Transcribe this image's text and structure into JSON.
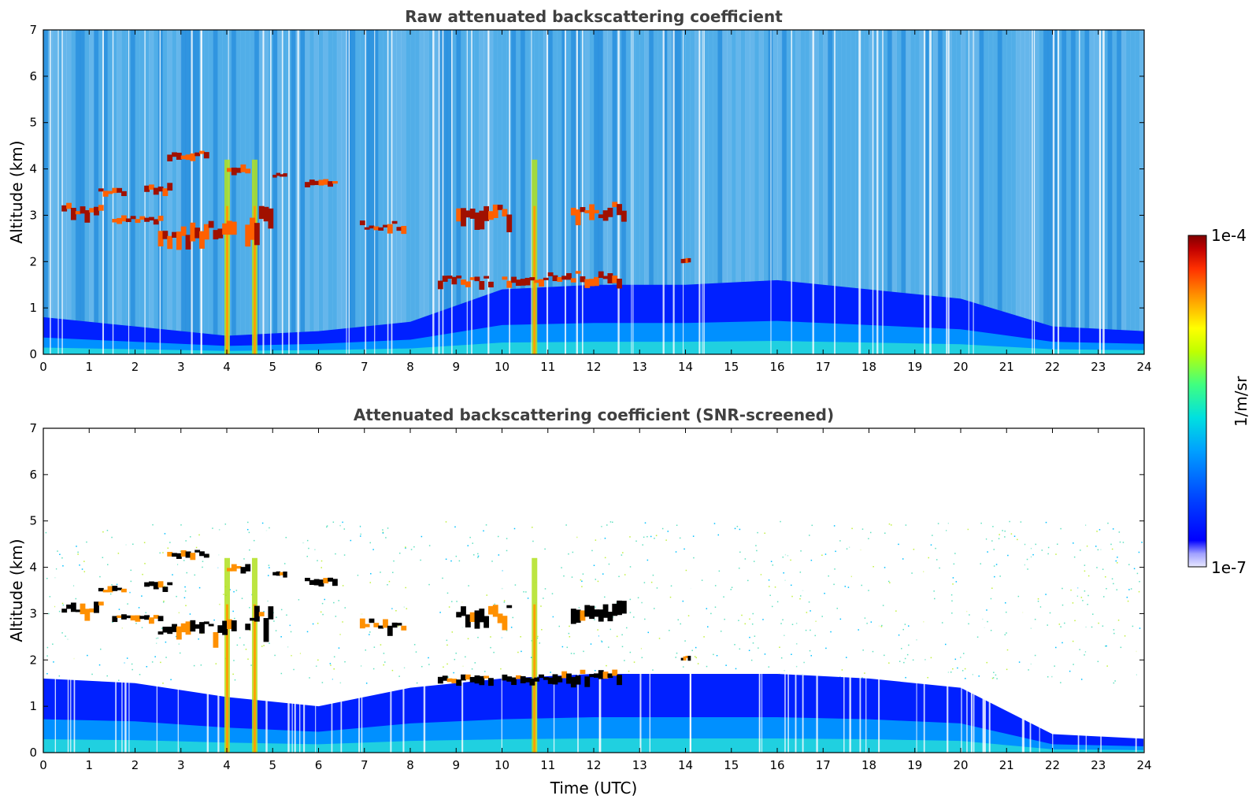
{
  "colors": {
    "background": "#ffffff",
    "title_color": "#404040",
    "colormap": [
      "#e8e8ff",
      "#b0b0ff",
      "#5050ff",
      "#0000ff",
      "#0050ff",
      "#00a0ff",
      "#00e0e0",
      "#40ff80",
      "#c0ff00",
      "#ffff00",
      "#ffa000",
      "#ff4000",
      "#d00000",
      "#800000"
    ],
    "cloud_screened": "#000000"
  },
  "colorbar": {
    "label": "1/m/sr",
    "max_label": "1e-4",
    "min_label": "1e-7",
    "scale": "log",
    "range": [
      1e-07,
      0.0001
    ]
  },
  "chart_data": [
    {
      "type": "heatmap",
      "title": "Raw attenuated backscattering coefficient",
      "xlabel": "",
      "ylabel": "Altitude (km)",
      "xlim": [
        0,
        24
      ],
      "ylim": [
        0,
        7
      ],
      "xticks": [
        0,
        1,
        2,
        3,
        4,
        5,
        6,
        7,
        8,
        9,
        10,
        11,
        12,
        13,
        14,
        15,
        16,
        17,
        18,
        19,
        20,
        21,
        22,
        23,
        24
      ],
      "yticks": [
        0,
        1,
        2,
        3,
        4,
        5,
        6,
        7
      ],
      "grid": false,
      "features": {
        "boundary_layer_top_km": [
          [
            0,
            0.8
          ],
          [
            2,
            0.6
          ],
          [
            4,
            0.4
          ],
          [
            6,
            0.5
          ],
          [
            8,
            0.7
          ],
          [
            10,
            1.4
          ],
          [
            12,
            1.5
          ],
          [
            14,
            1.5
          ],
          [
            16,
            1.6
          ],
          [
            18,
            1.4
          ],
          [
            20,
            1.2
          ],
          [
            22,
            0.6
          ],
          [
            24,
            0.5
          ]
        ],
        "cloud_layers": [
          {
            "x": [
              0.4,
              1.3
            ],
            "y": [
              2.9,
              3.3
            ]
          },
          {
            "x": [
              1.2,
              1.8
            ],
            "y": [
              3.45,
              3.6
            ]
          },
          {
            "x": [
              1.5,
              2.6
            ],
            "y": [
              2.85,
              3.0
            ]
          },
          {
            "x": [
              2.2,
              2.8
            ],
            "y": [
              3.5,
              3.7
            ]
          },
          {
            "x": [
              2.5,
              4.2
            ],
            "y": [
              2.3,
              2.9
            ]
          },
          {
            "x": [
              2.7,
              3.6
            ],
            "y": [
              4.2,
              4.4
            ]
          },
          {
            "x": [
              4.0,
              4.5
            ],
            "y": [
              3.9,
              4.1
            ]
          },
          {
            "x": [
              4.4,
              5.0
            ],
            "y": [
              2.4,
              3.2
            ]
          },
          {
            "x": [
              5.0,
              5.3
            ],
            "y": [
              3.8,
              3.95
            ]
          },
          {
            "x": [
              5.7,
              6.4
            ],
            "y": [
              3.6,
              3.8
            ]
          },
          {
            "x": [
              6.9,
              7.9
            ],
            "y": [
              2.6,
              2.9
            ]
          },
          {
            "x": [
              8.6,
              9.8
            ],
            "y": [
              1.45,
              1.7
            ]
          },
          {
            "x": [
              9.0,
              10.2
            ],
            "y": [
              2.7,
              3.3
            ]
          },
          {
            "x": [
              10.0,
              11.0
            ],
            "y": [
              1.5,
              1.7
            ]
          },
          {
            "x": [
              11.0,
              12.6
            ],
            "y": [
              1.5,
              1.8
            ]
          },
          {
            "x": [
              11.5,
              12.7
            ],
            "y": [
              2.8,
              3.3
            ]
          },
          {
            "x": [
              13.9,
              14.1
            ],
            "y": [
              2.0,
              2.1
            ]
          }
        ],
        "precipitation_columns_hours": [
          4.0,
          4.6,
          10.7
        ]
      }
    },
    {
      "type": "heatmap",
      "title": "Attenuated backscattering coefficient (SNR-screened)",
      "xlabel": "Time (UTC)",
      "ylabel": "Altitude (km)",
      "xlim": [
        0,
        24
      ],
      "ylim": [
        0,
        7
      ],
      "xticks": [
        0,
        1,
        2,
        3,
        4,
        5,
        6,
        7,
        8,
        9,
        10,
        11,
        12,
        13,
        14,
        15,
        16,
        17,
        18,
        19,
        20,
        21,
        22,
        23,
        24
      ],
      "yticks": [
        0,
        1,
        2,
        3,
        4,
        5,
        6,
        7
      ],
      "grid": false,
      "features": {
        "boundary_layer_top_km": [
          [
            0,
            1.6
          ],
          [
            2,
            1.5
          ],
          [
            4,
            1.2
          ],
          [
            6,
            1.0
          ],
          [
            8,
            1.4
          ],
          [
            10,
            1.6
          ],
          [
            12,
            1.7
          ],
          [
            14,
            1.7
          ],
          [
            16,
            1.7
          ],
          [
            18,
            1.6
          ],
          [
            20,
            1.4
          ],
          [
            22,
            0.4
          ],
          [
            24,
            0.3
          ]
        ],
        "cloud_layers_black": true,
        "precipitation_columns_hours": [
          4.0,
          4.6,
          10.7
        ]
      }
    }
  ]
}
